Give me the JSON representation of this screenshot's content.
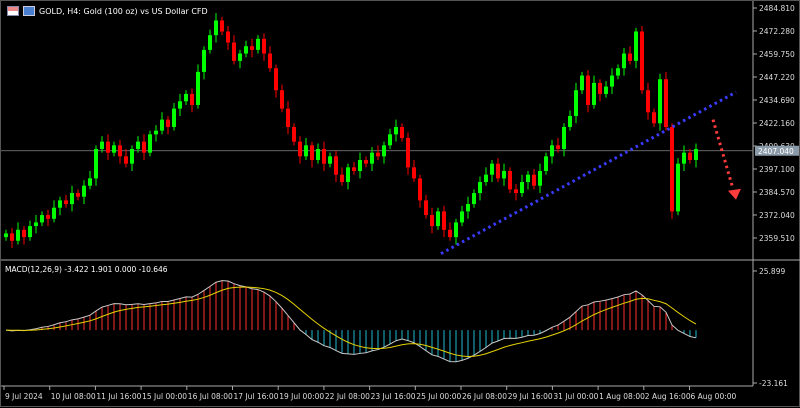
{
  "header": {
    "title": "GOLD, H4:  Gold (100 oz) vs US Dollar CFD",
    "icons": [
      "flag-icon",
      "chart-icon"
    ]
  },
  "colors": {
    "background": "#000000",
    "bull": "#00ff00",
    "bear": "#ff0000",
    "trendline": "#3b3bff",
    "arrow": "#ff3b3b",
    "macd_line": "#c8c8c8",
    "signal_line": "#e6d200",
    "hist_pos": "#ff3030",
    "hist_neg": "#20b8d0",
    "grid_axis": "#c0c0c0"
  },
  "chart_data": [
    {
      "type": "candlestick",
      "title": "GOLD, H4:  Gold (100 oz) vs US Dollar CFD",
      "y_ticks": [
        "2484.810",
        "2472.280",
        "2459.750",
        "2447.220",
        "2434.690",
        "2422.160",
        "2409.630",
        "2397.100",
        "2384.570",
        "2372.040",
        "2359.510"
      ],
      "ylim": [
        2359.51,
        2484.81
      ],
      "current_price": "2407.040",
      "x_ticks": [
        "9 Jul 2024",
        "10 Jul 08:00",
        "11 Jul 16:00",
        "15 Jul 00:00",
        "16 Jul 08:00",
        "17 Jul 16:00",
        "19 Jul 00:00",
        "22 Jul 08:00",
        "23 Jul 16:00",
        "25 Jul 00:00",
        "26 Jul 08:00",
        "29 Jul 16:00",
        "31 Jul 00:00",
        "1 Aug 08:00",
        "2 Aug 16:00",
        "6 Aug 00:00"
      ],
      "closes": [
        2362,
        2358,
        2364,
        2360,
        2366,
        2368,
        2372,
        2370,
        2376,
        2380,
        2378,
        2384,
        2382,
        2388,
        2392,
        2408,
        2412,
        2406,
        2410,
        2404,
        2400,
        2408,
        2412,
        2406,
        2416,
        2418,
        2424,
        2420,
        2430,
        2434,
        2438,
        2432,
        2450,
        2462,
        2470,
        2478,
        2472,
        2466,
        2456,
        2460,
        2464,
        2462,
        2468,
        2460,
        2452,
        2440,
        2430,
        2420,
        2412,
        2404,
        2410,
        2402,
        2408,
        2400,
        2404,
        2394,
        2390,
        2398,
        2396,
        2402,
        2400,
        2406,
        2404,
        2410,
        2416,
        2420,
        2414,
        2398,
        2392,
        2380,
        2372,
        2366,
        2374,
        2364,
        2360,
        2368,
        2374,
        2378,
        2384,
        2390,
        2394,
        2400,
        2392,
        2396,
        2386,
        2384,
        2390,
        2394,
        2388,
        2396,
        2404,
        2410,
        2408,
        2420,
        2426,
        2440,
        2448,
        2432,
        2444,
        2438,
        2442,
        2448,
        2452,
        2460,
        2456,
        2472,
        2440,
        2428,
        2422,
        2446,
        2420,
        2374,
        2400,
        2406,
        2402,
        2408
      ],
      "annotations": {
        "trendline": {
          "style": "dotted",
          "from_price": 2351,
          "to_price": 2439
        },
        "arrow": {
          "style": "dotted",
          "direction": "down",
          "from_price": 2424,
          "to_price": 2382
        }
      }
    },
    {
      "type": "macd",
      "label": "MACD(12,26,9) -3.422 1.901 0.000 -10.646",
      "params": [
        12,
        26,
        9
      ],
      "y_ticks": [
        "25.899",
        "-23.161"
      ],
      "ylim": [
        -23.161,
        25.899
      ]
    }
  ]
}
